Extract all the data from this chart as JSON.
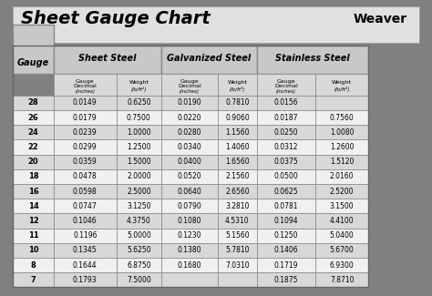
{
  "title": "Sheet Gauge Chart",
  "bg_outer": "#808080",
  "bg_inner": "#ffffff",
  "bg_header": "#e8e8e8",
  "bg_row_odd": "#d8d8d8",
  "bg_row_even": "#f0f0f0",
  "col_header_bg": "#c0c0c0",
  "gauges": [
    28,
    26,
    24,
    22,
    20,
    18,
    16,
    14,
    12,
    11,
    10,
    8,
    7
  ],
  "sheet_steel": [
    [
      "0.0149",
      "0.6250"
    ],
    [
      "0.0179",
      "0.7500"
    ],
    [
      "0.0239",
      "1.0000"
    ],
    [
      "0.0299",
      "1.2500"
    ],
    [
      "0.0359",
      "1.5000"
    ],
    [
      "0.0478",
      "2.0000"
    ],
    [
      "0.0598",
      "2.5000"
    ],
    [
      "0.0747",
      "3.1250"
    ],
    [
      "0.1046",
      "4.3750"
    ],
    [
      "0.1196",
      "5.0000"
    ],
    [
      "0.1345",
      "5.6250"
    ],
    [
      "0.1644",
      "6.8750"
    ],
    [
      "0.1793",
      "7.5000"
    ]
  ],
  "galvanized_steel": [
    [
      "0.0190",
      "0.7810"
    ],
    [
      "0.0220",
      "0.9060"
    ],
    [
      "0.0280",
      "1.1560"
    ],
    [
      "0.0340",
      "1.4060"
    ],
    [
      "0.0400",
      "1.6560"
    ],
    [
      "0.0520",
      "2.1560"
    ],
    [
      "0.0640",
      "2.6560"
    ],
    [
      "0.0790",
      "3.2810"
    ],
    [
      "0.1080",
      "4.5310"
    ],
    [
      "0.1230",
      "5.1560"
    ],
    [
      "0.1380",
      "5.7810"
    ],
    [
      "0.1680",
      "7.0310"
    ],
    [
      "",
      ""
    ]
  ],
  "stainless_steel": [
    [
      "0.0156",
      ""
    ],
    [
      "0.0187",
      "0.7560"
    ],
    [
      "0.0250",
      "1.0080"
    ],
    [
      "0.0312",
      "1.2600"
    ],
    [
      "0.0375",
      "1.5120"
    ],
    [
      "0.0500",
      "2.0160"
    ],
    [
      "0.0625",
      "2.5200"
    ],
    [
      "0.0781",
      "3.1500"
    ],
    [
      "0.1094",
      "4.4100"
    ],
    [
      "0.1250",
      "5.0400"
    ],
    [
      "0.1406",
      "5.6700"
    ],
    [
      "0.1719",
      "6.9300"
    ],
    [
      "0.1875",
      "7.8710"
    ]
  ]
}
